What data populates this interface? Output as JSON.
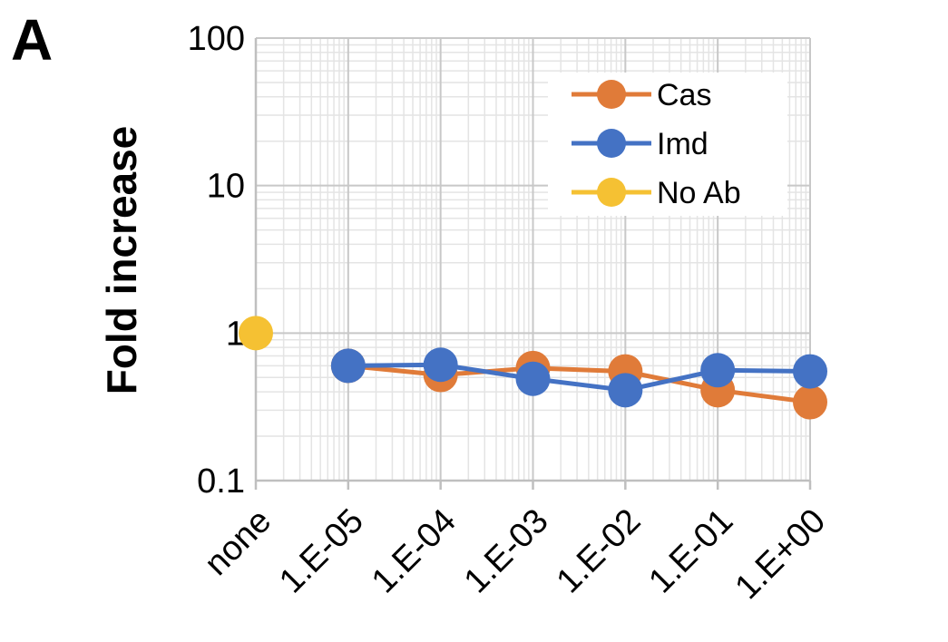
{
  "panel_label": "A",
  "chart_data": {
    "type": "line",
    "xlabel": "",
    "ylabel": "Fold increase",
    "categories": [
      "none",
      "1.E-05",
      "1.E-04",
      "1.E-03",
      "1.E-02",
      "1.E-01",
      "1.E+00"
    ],
    "y_scale": "log",
    "ylim": [
      0.1,
      100
    ],
    "y_ticks": [
      "0.1",
      "1",
      "10",
      "100"
    ],
    "grid": true,
    "legend_position": "top-right",
    "series": [
      {
        "name": "Cas",
        "color": "#E07B39",
        "values": [
          null,
          0.6,
          0.52,
          0.58,
          0.55,
          0.41,
          0.34
        ]
      },
      {
        "name": "Imd",
        "color": "#4472C4",
        "values": [
          null,
          0.6,
          0.61,
          0.49,
          0.41,
          0.56,
          0.55
        ]
      },
      {
        "name": "No Ab",
        "color": "#F5C133",
        "values": [
          1.0,
          null,
          null,
          null,
          null,
          null,
          null
        ]
      }
    ]
  }
}
